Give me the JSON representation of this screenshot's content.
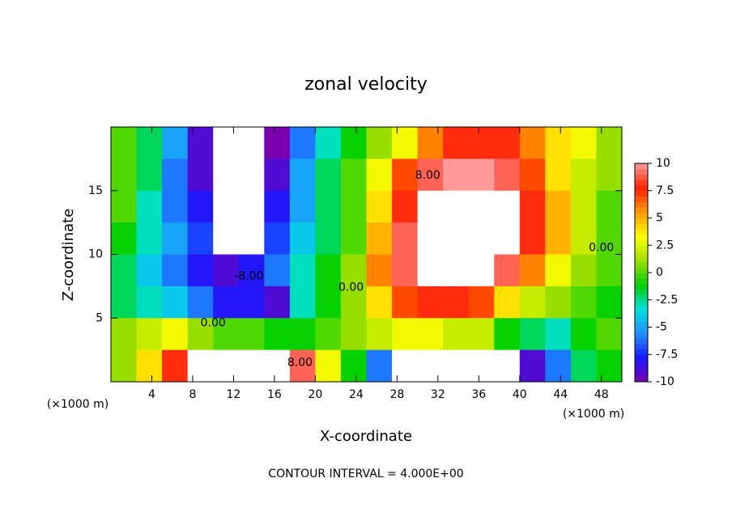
{
  "chart_data": {
    "type": "contour",
    "title": "zonal velocity",
    "x_label": "X-coordinate",
    "y_label": "Z-coordinate",
    "x_unit": "(×1000 m)",
    "x_unit_right": "(×1000 m)",
    "note": "CONTOUR INTERVAL = 4.000E+00",
    "x": [
      1.25,
      3.75,
      6.25,
      8.75,
      11.25,
      13.75,
      16.25,
      18.75,
      21.25,
      23.75,
      26.25,
      28.75,
      31.25,
      33.75,
      36.25,
      38.75,
      41.25,
      43.75,
      46.25,
      48.75
    ],
    "y": [
      18.75,
      16.25,
      13.75,
      11.25,
      8.75,
      6.25,
      3.75,
      1.25
    ],
    "z": [
      [
        0,
        -2,
        -5,
        -9,
        -12,
        -12,
        -10,
        -6,
        -3,
        -1,
        1,
        3,
        6,
        8,
        8,
        8,
        6,
        4,
        3,
        1
      ],
      [
        0,
        -2,
        -6,
        -9,
        -12,
        -12,
        -9,
        -5,
        -2,
        0,
        3,
        7,
        9,
        10,
        10,
        9,
        7,
        4,
        2,
        1
      ],
      [
        0,
        -3,
        -6,
        -8,
        -12,
        -12,
        -8,
        -5,
        -2,
        0,
        4,
        8,
        12,
        12,
        12,
        11,
        8,
        5,
        2,
        0
      ],
      [
        -1,
        -3,
        -5,
        -7,
        -11,
        -12,
        -7,
        -4,
        -2,
        0,
        5,
        9,
        11,
        12,
        13,
        12,
        8,
        5,
        2,
        0
      ],
      [
        -2,
        -4,
        -6,
        -8,
        -9,
        -8,
        -6,
        -3,
        -1,
        1,
        6,
        9,
        11,
        12,
        11,
        9,
        6,
        3,
        1,
        0
      ],
      [
        -2,
        -3,
        -4,
        -6,
        -8,
        -8,
        -9,
        -3,
        -1,
        1,
        4,
        7,
        8,
        8,
        7,
        4,
        2,
        1,
        0,
        -1
      ],
      [
        1,
        2,
        3,
        1,
        0,
        0,
        -1,
        -1,
        0,
        1,
        2,
        3,
        3,
        2,
        2,
        -1,
        -2,
        -3,
        -1,
        0
      ],
      [
        1,
        4,
        8,
        11,
        12,
        13,
        12,
        9,
        3,
        -1,
        -6,
        -11,
        -12,
        -12,
        -11,
        -13,
        -9,
        -6,
        -2,
        -1
      ]
    ],
    "xlim": [
      0,
      50
    ],
    "ylim": [
      0,
      20
    ],
    "xticks": [
      4,
      8,
      12,
      16,
      20,
      24,
      28,
      32,
      36,
      40,
      44,
      48
    ],
    "yticks": [
      5,
      10,
      15
    ],
    "clim": [
      -10,
      10
    ],
    "cticks": [
      10,
      7.5,
      5,
      2.5,
      0,
      -2.5,
      -5,
      -7.5,
      -10
    ],
    "colormap": [
      "#7a00b0",
      "#1a1aff",
      "#1e90ff",
      "#00e0e0",
      "#00d000",
      "#a0e000",
      "#ffff00",
      "#ff9900",
      "#ff2000",
      "#ff9a9a"
    ],
    "out_of_range_color": "#ffffff",
    "contour_labels": [
      {
        "text": "8.00",
        "x": 31,
        "y": 16.2
      },
      {
        "text": "-8.00",
        "x": 13.5,
        "y": 8.3
      },
      {
        "text": "0.00",
        "x": 10,
        "y": 4.6
      },
      {
        "text": "0.00",
        "x": 23.5,
        "y": 7.4
      },
      {
        "text": "0.00",
        "x": 48,
        "y": 10.5
      },
      {
        "text": "8.00",
        "x": 18.5,
        "y": 1.5
      }
    ]
  }
}
